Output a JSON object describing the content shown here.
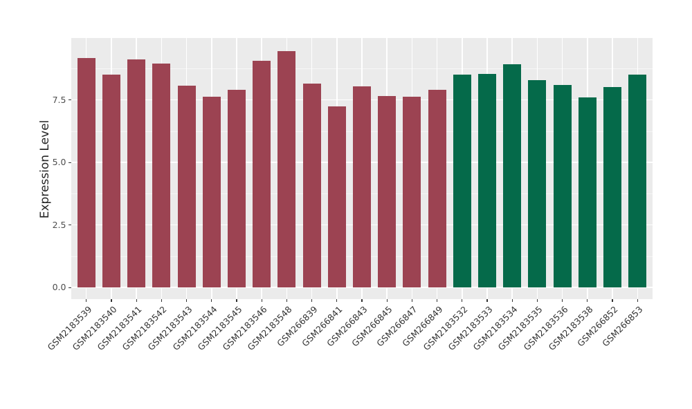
{
  "figure": {
    "background_color": "#ffffff",
    "panel_background_color": "#ebebeb",
    "gridline_color": "#ffffff"
  },
  "chart_data": {
    "type": "bar",
    "title": "",
    "xlabel": "",
    "ylabel": "Expression Level",
    "legend": "none",
    "grid": "on (white major + minor horizontal lines, white vertical lines at each category, gray panel)",
    "ylim": [
      0,
      9.9
    ],
    "yticks": [
      0.0,
      2.5,
      5.0,
      7.5
    ],
    "ytick_labels": [
      "0.0",
      "2.5",
      "5.0",
      "7.5"
    ],
    "yminor_ticks": [
      1.25,
      3.75,
      6.25,
      8.75
    ],
    "categories": [
      "GSM2183539",
      "GSM2183540",
      "GSM2183541",
      "GSM2183542",
      "GSM2183543",
      "GSM2183544",
      "GSM2183545",
      "GSM2183546",
      "GSM2183548",
      "GSM266839",
      "GSM266841",
      "GSM266843",
      "GSM266845",
      "GSM266847",
      "GSM266849",
      "GSM2183532",
      "GSM2183533",
      "GSM2183534",
      "GSM2183535",
      "GSM2183536",
      "GSM2183538",
      "GSM266852",
      "GSM266853"
    ],
    "values": [
      9.17,
      8.5,
      9.12,
      8.96,
      8.07,
      7.62,
      7.9,
      9.05,
      9.45,
      8.16,
      7.24,
      8.04,
      7.64,
      7.62,
      7.9,
      8.52,
      8.54,
      8.93,
      8.29,
      8.09,
      7.61,
      8.02,
      8.51
    ],
    "bar_groups": [
      "a",
      "a",
      "a",
      "a",
      "a",
      "a",
      "a",
      "a",
      "a",
      "a",
      "a",
      "a",
      "a",
      "a",
      "a",
      "b",
      "b",
      "b",
      "b",
      "b",
      "b",
      "b",
      "b"
    ],
    "group_colors": {
      "a": "#9C4352",
      "b": "#056A4A"
    },
    "x_tick_label_rotation_deg": 45
  }
}
